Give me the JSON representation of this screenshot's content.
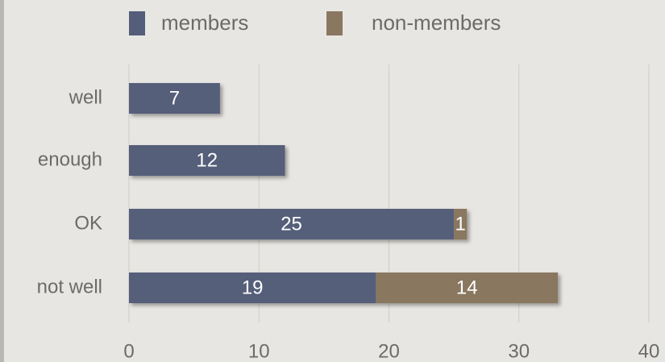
{
  "chart_data": {
    "type": "stacked-bar-horizontal",
    "categories": [
      "well",
      "enough",
      "OK",
      "not well"
    ],
    "series": [
      {
        "name": "members",
        "color": "#545e7a",
        "values": [
          7,
          12,
          25,
          19
        ]
      },
      {
        "name": "non-members",
        "color": "#8a7760",
        "values": [
          0,
          0,
          1,
          14
        ]
      }
    ],
    "xlim": [
      0,
      40
    ],
    "xticks": [
      0,
      10,
      20,
      30,
      40
    ],
    "grid": true,
    "legend": "top"
  }
}
